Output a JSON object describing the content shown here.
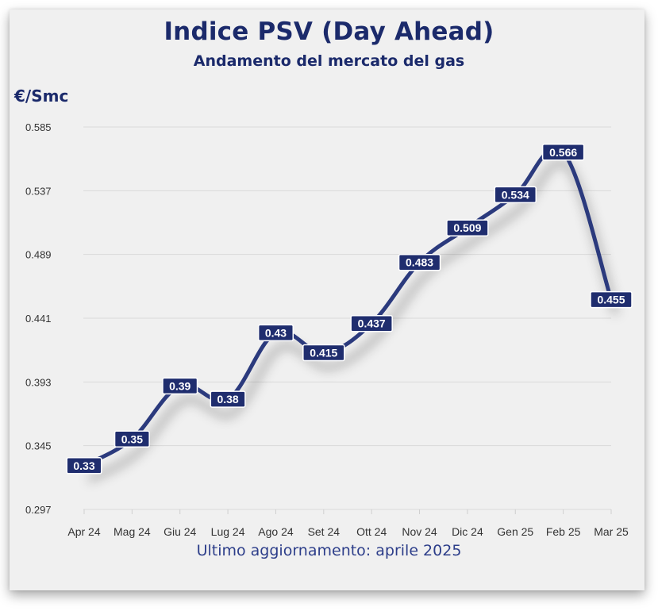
{
  "chart_data": {
    "type": "line",
    "title": "Indice PSV (Day Ahead)",
    "subtitle": "Andamento del mercato del gas",
    "ylabel": "€/Smc",
    "xlabel": "",
    "categories": [
      "Apr 24",
      "Mag 24",
      "Giu 24",
      "Lug 24",
      "Ago 24",
      "Set 24",
      "Ott 24",
      "Nov 24",
      "Dic 24",
      "Gen 25",
      "Feb 25",
      "Mar 25"
    ],
    "values": [
      0.33,
      0.35,
      0.39,
      0.38,
      0.43,
      0.415,
      0.437,
      0.483,
      0.509,
      0.534,
      0.566,
      0.455
    ],
    "data_labels": [
      "0.33",
      "0.35",
      "0.39",
      "0.38",
      "0.43",
      "0.415",
      "0.437",
      "0.483",
      "0.509",
      "0.534",
      "0.566",
      "0.455"
    ],
    "yticks": [
      "0.297",
      "0.345",
      "0.393",
      "0.441",
      "0.489",
      "0.537",
      "0.585"
    ],
    "ylim": [
      0.297,
      0.585
    ],
    "grid": true,
    "line_color": "#2b3a7d",
    "label_bg_color": "#1f2d6e",
    "text_color": "#1b2a6b"
  },
  "footer": "Ultimo aggiornamento: aprile 2025"
}
